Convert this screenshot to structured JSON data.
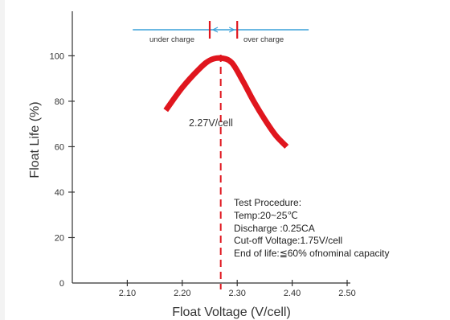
{
  "chart_data": {
    "type": "line",
    "title": "",
    "xlabel": "Float Voltage (V/cell)",
    "ylabel": "Float Life (%)",
    "xlim": [
      2.0,
      2.5
    ],
    "ylim": [
      0,
      110
    ],
    "x_ticks": [
      "2.10",
      "2.20",
      "2.30",
      "2.40",
      "2.50"
    ],
    "x_tick_values": [
      2.1,
      2.2,
      2.3,
      2.4,
      2.5
    ],
    "y_ticks": [
      "0",
      "20",
      "40",
      "60",
      "80",
      "100"
    ],
    "y_tick_values": [
      0,
      20,
      40,
      60,
      80,
      100
    ],
    "series": [
      {
        "color": "#e0161e",
        "x": [
          2.17,
          2.2,
          2.23,
          2.25,
          2.27,
          2.29,
          2.31,
          2.33,
          2.35,
          2.37,
          2.39
        ],
        "y": [
          76,
          86,
          94,
          98,
          99,
          97,
          89,
          80,
          72,
          65,
          60
        ]
      }
    ],
    "optimum_voltage": 2.27,
    "optimum_label": "2.27V/cell",
    "band": {
      "under_label": "under charge",
      "over_label": "over charge",
      "marker_left": 2.25,
      "marker_right": 2.3,
      "y_level": 114,
      "x_start": 2.11,
      "x_end": 2.43
    },
    "notes": [
      "Test Procedure:",
      "Temp:20~25℃",
      "Discharge :0.25CA",
      "Cut-off Voltage:1.75V/cell",
      "End of life:≦60% ofnominal capacity"
    ],
    "colors": {
      "curve": "#e0161e",
      "dash": "#e0161e",
      "band": "#3aa0d8",
      "axis": "#333333"
    }
  }
}
